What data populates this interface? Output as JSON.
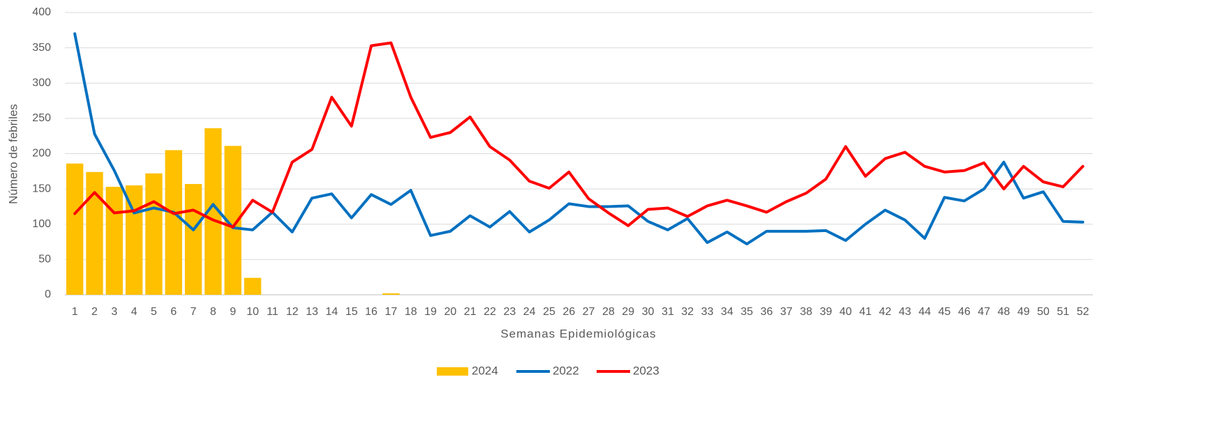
{
  "chart_data": {
    "type": "combo",
    "x_label": "Semanas Epidemiológicas",
    "y_label": "Número de febriles",
    "categories": [
      "1",
      "2",
      "3",
      "4",
      "5",
      "6",
      "7",
      "8",
      "9",
      "10",
      "11",
      "12",
      "13",
      "14",
      "15",
      "16",
      "17",
      "18",
      "19",
      "20",
      "21",
      "22",
      "23",
      "24",
      "25",
      "26",
      "27",
      "28",
      "29",
      "30",
      "31",
      "32",
      "33",
      "34",
      "35",
      "36",
      "37",
      "38",
      "39",
      "40",
      "41",
      "42",
      "43",
      "44",
      "45",
      "46",
      "47",
      "48",
      "49",
      "50",
      "51",
      "52"
    ],
    "series": [
      {
        "name": "2024",
        "type": "bar",
        "color": "#FFC000",
        "values": [
          186,
          174,
          153,
          155,
          172,
          205,
          157,
          236,
          211,
          24,
          null,
          null,
          null,
          null,
          null,
          null,
          2,
          null,
          null,
          null,
          null,
          null,
          null,
          null,
          null,
          null,
          null,
          null,
          null,
          null,
          null,
          null,
          null,
          null,
          null,
          null,
          null,
          null,
          null,
          null,
          null,
          null,
          null,
          null,
          null,
          null,
          null,
          null,
          null,
          null,
          null,
          null
        ]
      },
      {
        "name": "2022",
        "type": "line",
        "color": "#0070C0",
        "values": [
          370,
          228,
          176,
          116,
          123,
          117,
          92,
          128,
          95,
          92,
          117,
          89,
          137,
          143,
          109,
          142,
          128,
          148,
          84,
          90,
          112,
          96,
          118,
          89,
          106,
          129,
          125,
          125,
          126,
          104,
          92,
          108,
          74,
          89,
          72,
          90,
          90,
          90,
          91,
          77,
          100,
          120,
          106,
          80,
          138,
          133,
          150,
          188,
          137,
          146,
          104,
          103
        ]
      },
      {
        "name": "2023",
        "type": "line",
        "color": "#FF0000",
        "values": [
          115,
          145,
          116,
          119,
          132,
          115,
          120,
          106,
          96,
          134,
          117,
          188,
          206,
          280,
          239,
          353,
          357,
          280,
          223,
          230,
          252,
          210,
          191,
          161,
          151,
          174,
          136,
          116,
          98,
          121,
          123,
          111,
          126,
          134,
          126,
          117,
          132,
          144,
          164,
          210,
          168,
          193,
          202,
          182,
          174,
          176,
          187,
          150,
          182,
          160,
          153,
          182
        ]
      }
    ],
    "ylim": [
      0,
      400
    ],
    "yticks": [
      0,
      50,
      100,
      150,
      200,
      250,
      300,
      350,
      400
    ],
    "grid": true
  }
}
